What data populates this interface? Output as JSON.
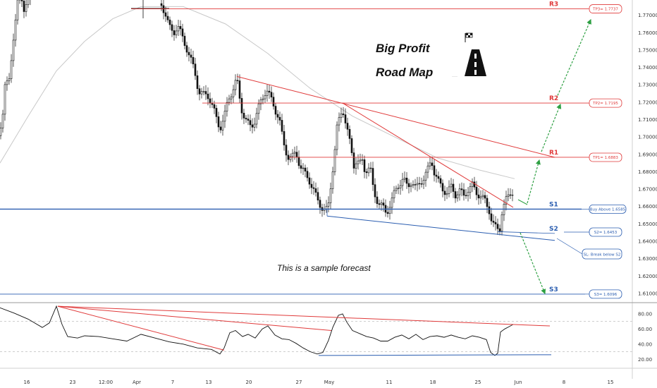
{
  "chart_data": {
    "type": "candlestick",
    "title_line1": "Big Profit",
    "title_line2": "Road Map",
    "note": "This is a sample forecast",
    "price_axis": {
      "ticks": [
        "1.77000",
        "1.76000",
        "1.75000",
        "1.74000",
        "1.73000",
        "1.72000",
        "1.71000",
        "1.70000",
        "1.69000",
        "1.68000",
        "1.67000",
        "1.66000",
        "1.65000",
        "1.64000",
        "1.63000",
        "1.62000",
        "1.61000"
      ],
      "min": 1.6055,
      "max": 1.7788
    },
    "rsi_axis": {
      "ticks": [
        "80.00",
        "60.00",
        "40.00",
        "20.00"
      ],
      "min": 10,
      "max": 92
    },
    "x_axis": {
      "ticks": [
        "16",
        "23",
        "12:00",
        "Apr",
        "7",
        "13",
        "20",
        "27",
        "May",
        "11",
        "18",
        "25",
        "Jun",
        "8",
        "15"
      ]
    },
    "levels": [
      {
        "label": "R3",
        "price": 1.7737,
        "box": "TP3= 1.7737",
        "kind": "resistance"
      },
      {
        "label": "R2",
        "price": 1.7195,
        "box": "TP2= 1.7195",
        "kind": "resistance"
      },
      {
        "label": "R1",
        "price": 1.6883,
        "box": "TP1= 1.6883",
        "kind": "resistance"
      },
      {
        "label": "S1",
        "price": 1.6585,
        "box": "Buy Above 1.6585",
        "kind": "support"
      },
      {
        "label": "S2",
        "price": 1.6453,
        "box": "S2= 1.6453",
        "kind": "support"
      },
      {
        "label": "S3",
        "price": 1.6096,
        "box": "S3= 1.6096",
        "kind": "support"
      }
    ],
    "extra_box": "SL: Break below S2",
    "colors": {
      "resistance": "#e03a3a",
      "support": "#2a5db0",
      "forecast": "#2ea043",
      "candle": "#111111",
      "ma": "#c8c8c8"
    },
    "price_path": [
      [
        0,
        1.7
      ],
      [
        4,
        1.712
      ],
      [
        8,
        1.738
      ],
      [
        12,
        1.731
      ],
      [
        16,
        1.742
      ],
      [
        20,
        1.758
      ],
      [
        24,
        1.778
      ],
      [
        28,
        1.79
      ],
      [
        33,
        1.768
      ],
      [
        37,
        1.776
      ],
      [
        41,
        1.783
      ],
      [
        46,
        1.79
      ],
      [
        52,
        1.786
      ],
      [
        228,
        1.777
      ],
      [
        234,
        1.772
      ],
      [
        240,
        1.763
      ],
      [
        246,
        1.76
      ],
      [
        252,
        1.764
      ],
      [
        258,
        1.758
      ],
      [
        264,
        1.752
      ],
      [
        270,
        1.745
      ],
      [
        276,
        1.738
      ],
      [
        282,
        1.726
      ],
      [
        288,
        1.724
      ],
      [
        294,
        1.725
      ],
      [
        300,
        1.719
      ],
      [
        306,
        1.712
      ],
      [
        312,
        1.705
      ],
      [
        318,
        1.711
      ],
      [
        324,
        1.722
      ],
      [
        330,
        1.727
      ],
      [
        336,
        1.733
      ],
      [
        342,
        1.717
      ],
      [
        348,
        1.71
      ],
      [
        354,
        1.706
      ],
      [
        360,
        1.708
      ],
      [
        366,
        1.716
      ],
      [
        372,
        1.722
      ],
      [
        378,
        1.728
      ],
      [
        384,
        1.722
      ],
      [
        390,
        1.716
      ],
      [
        396,
        1.711
      ],
      [
        402,
        1.696
      ],
      [
        408,
        1.689
      ],
      [
        414,
        1.688
      ],
      [
        420,
        1.691
      ],
      [
        426,
        1.683
      ],
      [
        432,
        1.679
      ],
      [
        438,
        1.676
      ],
      [
        444,
        1.67
      ],
      [
        450,
        1.664
      ],
      [
        456,
        1.66
      ],
      [
        462,
        1.657
      ],
      [
        466,
        1.661
      ],
      [
        470,
        1.675
      ],
      [
        474,
        1.689
      ],
      [
        478,
        1.705
      ],
      [
        482,
        1.711
      ],
      [
        486,
        1.717
      ],
      [
        490,
        1.709
      ],
      [
        494,
        1.701
      ],
      [
        498,
        1.693
      ],
      [
        502,
        1.684
      ],
      [
        506,
        1.687
      ],
      [
        510,
        1.684
      ],
      [
        514,
        1.686
      ],
      [
        518,
        1.68
      ],
      [
        522,
        1.683
      ],
      [
        526,
        1.68
      ],
      [
        530,
        1.668
      ],
      [
        536,
        1.663
      ],
      [
        542,
        1.66
      ],
      [
        548,
        1.656
      ],
      [
        554,
        1.662
      ],
      [
        560,
        1.668
      ],
      [
        566,
        1.673
      ],
      [
        572,
        1.676
      ],
      [
        578,
        1.671
      ],
      [
        584,
        1.675
      ],
      [
        590,
        1.67
      ],
      [
        596,
        1.674
      ],
      [
        602,
        1.677
      ],
      [
        608,
        1.682
      ],
      [
        612,
        1.687
      ],
      [
        616,
        1.68
      ],
      [
        622,
        1.674
      ],
      [
        628,
        1.67
      ],
      [
        634,
        1.668
      ],
      [
        640,
        1.671
      ],
      [
        646,
        1.667
      ],
      [
        652,
        1.669
      ],
      [
        658,
        1.666
      ],
      [
        664,
        1.67
      ],
      [
        670,
        1.672
      ],
      [
        676,
        1.668
      ],
      [
        682,
        1.666
      ],
      [
        688,
        1.663
      ],
      [
        694,
        1.658
      ],
      [
        698,
        1.651
      ],
      [
        702,
        1.648
      ],
      [
        706,
        1.647
      ],
      [
        710,
        1.648
      ],
      [
        712,
        1.657
      ],
      [
        716,
        1.662
      ],
      [
        720,
        1.665
      ],
      [
        724,
        1.668
      ],
      [
        728,
        1.669
      ]
    ],
    "ma_path": [
      [
        0,
        1.685
      ],
      [
        40,
        1.712
      ],
      [
        80,
        1.738
      ],
      [
        120,
        1.755
      ],
      [
        160,
        1.768
      ],
      [
        200,
        1.775
      ],
      [
        260,
        1.775
      ],
      [
        320,
        1.765
      ],
      [
        380,
        1.748
      ],
      [
        440,
        1.728
      ],
      [
        500,
        1.712
      ],
      [
        560,
        1.7
      ],
      [
        620,
        1.688
      ],
      [
        680,
        1.681
      ],
      [
        730,
        1.676
      ]
    ],
    "rsi_path": [
      [
        0,
        88
      ],
      [
        20,
        81
      ],
      [
        40,
        73
      ],
      [
        60,
        62
      ],
      [
        70,
        68
      ],
      [
        80,
        90
      ],
      [
        88,
        66
      ],
      [
        96,
        50
      ],
      [
        110,
        48
      ],
      [
        120,
        51
      ],
      [
        140,
        50
      ],
      [
        160,
        47
      ],
      [
        180,
        44
      ],
      [
        200,
        53
      ],
      [
        220,
        48
      ],
      [
        240,
        43
      ],
      [
        260,
        40
      ],
      [
        280,
        35
      ],
      [
        300,
        33
      ],
      [
        312,
        27
      ],
      [
        318,
        35
      ],
      [
        326,
        55
      ],
      [
        334,
        58
      ],
      [
        344,
        50
      ],
      [
        352,
        53
      ],
      [
        362,
        48
      ],
      [
        372,
        60
      ],
      [
        380,
        64
      ],
      [
        390,
        52
      ],
      [
        400,
        47
      ],
      [
        410,
        46
      ],
      [
        420,
        41
      ],
      [
        430,
        35
      ],
      [
        440,
        30
      ],
      [
        450,
        27
      ],
      [
        458,
        29
      ],
      [
        466,
        45
      ],
      [
        472,
        62
      ],
      [
        480,
        78
      ],
      [
        486,
        80
      ],
      [
        492,
        69
      ],
      [
        500,
        58
      ],
      [
        510,
        54
      ],
      [
        520,
        50
      ],
      [
        530,
        48
      ],
      [
        540,
        44
      ],
      [
        550,
        44
      ],
      [
        560,
        49
      ],
      [
        570,
        52
      ],
      [
        580,
        47
      ],
      [
        590,
        53
      ],
      [
        600,
        46
      ],
      [
        610,
        50
      ],
      [
        620,
        51
      ],
      [
        630,
        49
      ],
      [
        640,
        52
      ],
      [
        650,
        49
      ],
      [
        660,
        47
      ],
      [
        670,
        51
      ],
      [
        680,
        49
      ],
      [
        690,
        46
      ],
      [
        696,
        29
      ],
      [
        702,
        25
      ],
      [
        706,
        28
      ],
      [
        710,
        56
      ],
      [
        716,
        60
      ],
      [
        722,
        63
      ],
      [
        728,
        66
      ]
    ]
  }
}
